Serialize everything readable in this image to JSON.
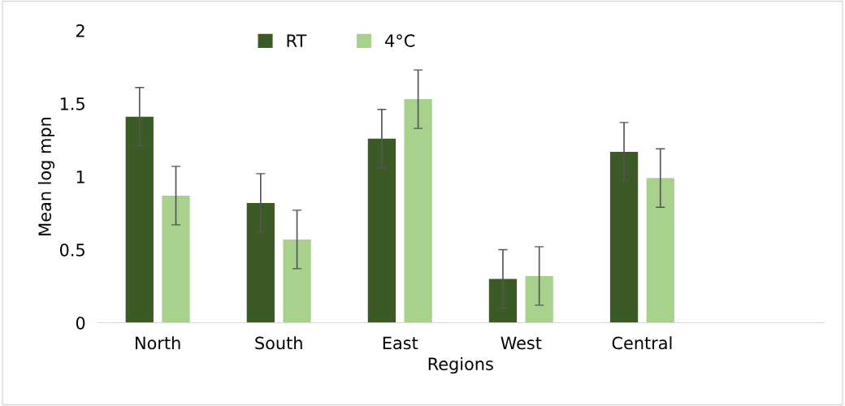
{
  "chart_data": {
    "type": "bar",
    "xlabel": "Regions",
    "ylabel": "Mean log mpn",
    "categories": [
      "North",
      "South",
      "East",
      "West",
      "Central",
      null
    ],
    "series": [
      {
        "name": "RT",
        "color": "#3b5a25",
        "values": [
          1.41,
          0.82,
          1.26,
          0.3,
          1.17,
          null
        ],
        "errors": [
          0.2,
          0.2,
          0.2,
          0.2,
          0.2,
          null
        ]
      },
      {
        "name": "4°C",
        "color": "#a9d18e",
        "values": [
          0.87,
          0.57,
          1.53,
          0.32,
          0.99,
          null
        ],
        "errors": [
          0.2,
          0.2,
          0.2,
          0.2,
          0.2,
          null
        ]
      }
    ],
    "ylim": [
      0,
      2
    ],
    "yticks": [
      0,
      0.5,
      1,
      1.5,
      2
    ],
    "grid": false,
    "legend": "top"
  }
}
